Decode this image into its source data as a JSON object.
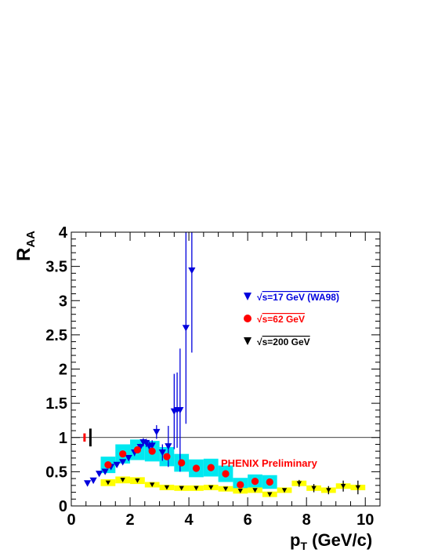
{
  "chart_data": {
    "type": "scatter",
    "xlabel": {
      "main": "p",
      "sub": "T",
      "rest": " (GeV/c)"
    },
    "ylabel": {
      "main": "R",
      "sub": "AA"
    },
    "xlim": [
      0,
      10.5
    ],
    "ylim": [
      0,
      4
    ],
    "x_ticks": [
      "0",
      "2",
      "4",
      "6",
      "8",
      "10"
    ],
    "y_ticks": [
      "0",
      "0.5",
      "1",
      "1.5",
      "2",
      "2.5",
      "3",
      "3.5",
      "4"
    ],
    "reference_line_y": 1,
    "annotation": {
      "text": "PHENIX Preliminary",
      "color": "#ff0000"
    },
    "series": [
      {
        "name": "√s=17 GeV (WA98)",
        "root": "√",
        "label_rest": "s=17 GeV (WA98)",
        "color": "#0000dd",
        "marker": "triangle-down",
        "points": [
          {
            "x": 0.55,
            "y": 0.33,
            "err": 0.02
          },
          {
            "x": 0.75,
            "y": 0.37,
            "err": 0.02
          },
          {
            "x": 0.95,
            "y": 0.47,
            "err": 0.02
          },
          {
            "x": 1.15,
            "y": 0.5,
            "err": 0.02
          },
          {
            "x": 1.35,
            "y": 0.57,
            "err": 0.03
          },
          {
            "x": 1.55,
            "y": 0.6,
            "err": 0.03
          },
          {
            "x": 1.75,
            "y": 0.64,
            "err": 0.03
          },
          {
            "x": 1.95,
            "y": 0.7,
            "err": 0.04
          },
          {
            "x": 2.15,
            "y": 0.78,
            "err": 0.05
          },
          {
            "x": 2.35,
            "y": 0.86,
            "err": 0.05
          },
          {
            "x": 2.45,
            "y": 0.93,
            "err": 0.06
          },
          {
            "x": 2.55,
            "y": 0.92,
            "err": 0.06
          },
          {
            "x": 2.65,
            "y": 0.87,
            "err": 0.07
          },
          {
            "x": 2.75,
            "y": 0.88,
            "err": 0.08
          },
          {
            "x": 2.9,
            "y": 1.08,
            "err": 0.1
          },
          {
            "x": 3.1,
            "y": 0.78,
            "err": 0.12
          },
          {
            "x": 3.3,
            "y": 0.87,
            "err": 0.3
          },
          {
            "x": 3.5,
            "y": 1.38,
            "err": 0.55
          },
          {
            "x": 3.6,
            "y": 1.4,
            "err": 0.55
          },
          {
            "x": 3.7,
            "y": 1.4,
            "err": 0.9
          },
          {
            "x": 3.9,
            "y": 2.6,
            "err": 1.4
          },
          {
            "x": 4.1,
            "y": 3.44,
            "err": 1.2
          }
        ]
      },
      {
        "name": "√s=62 GeV",
        "root": "√",
        "label_rest": "s=62 GeV",
        "color": "#ff0000",
        "marker": "circle",
        "sys_color": "#00e8f0",
        "points": [
          {
            "x": 1.25,
            "y": 0.6,
            "sys": 0.12
          },
          {
            "x": 1.75,
            "y": 0.76,
            "sys": 0.14
          },
          {
            "x": 2.25,
            "y": 0.82,
            "sys": 0.15
          },
          {
            "x": 2.75,
            "y": 0.8,
            "sys": 0.15
          },
          {
            "x": 3.25,
            "y": 0.72,
            "sys": 0.14
          },
          {
            "x": 3.75,
            "y": 0.63,
            "sys": 0.13
          },
          {
            "x": 4.25,
            "y": 0.55,
            "sys": 0.13
          },
          {
            "x": 4.75,
            "y": 0.56,
            "sys": 0.13
          },
          {
            "x": 5.25,
            "y": 0.47,
            "sys": 0.12
          },
          {
            "x": 5.75,
            "y": 0.31,
            "sys": 0.1
          },
          {
            "x": 6.25,
            "y": 0.36,
            "sys": 0.1
          },
          {
            "x": 6.75,
            "y": 0.35,
            "sys": 0.1
          }
        ]
      },
      {
        "name": "√s=200 GeV",
        "root": "√",
        "label_rest": "s=200 GeV",
        "color": "#000000",
        "marker": "triangle-down",
        "sys_color": "#ffff00",
        "points": [
          {
            "x": 1.25,
            "y": 0.34,
            "sys": 0.05,
            "err": 0.01
          },
          {
            "x": 1.75,
            "y": 0.38,
            "sys": 0.05,
            "err": 0.01
          },
          {
            "x": 2.25,
            "y": 0.37,
            "sys": 0.05,
            "err": 0.01
          },
          {
            "x": 2.75,
            "y": 0.31,
            "sys": 0.04,
            "err": 0.01
          },
          {
            "x": 3.25,
            "y": 0.27,
            "sys": 0.04,
            "err": 0.01
          },
          {
            "x": 3.75,
            "y": 0.26,
            "sys": 0.04,
            "err": 0.01
          },
          {
            "x": 4.25,
            "y": 0.26,
            "sys": 0.04,
            "err": 0.01
          },
          {
            "x": 4.75,
            "y": 0.27,
            "sys": 0.04,
            "err": 0.01
          },
          {
            "x": 5.25,
            "y": 0.25,
            "sys": 0.04,
            "err": 0.01
          },
          {
            "x": 5.75,
            "y": 0.22,
            "sys": 0.04,
            "err": 0.01
          },
          {
            "x": 6.25,
            "y": 0.23,
            "sys": 0.04,
            "err": 0.02
          },
          {
            "x": 6.75,
            "y": 0.17,
            "sys": 0.04,
            "err": 0.03
          },
          {
            "x": 7.25,
            "y": 0.23,
            "sys": 0.04,
            "err": 0.03
          },
          {
            "x": 7.75,
            "y": 0.33,
            "sys": 0.04,
            "err": 0.05
          },
          {
            "x": 8.25,
            "y": 0.26,
            "sys": 0.04,
            "err": 0.06
          },
          {
            "x": 8.75,
            "y": 0.23,
            "sys": 0.04,
            "err": 0.06
          },
          {
            "x": 9.25,
            "y": 0.29,
            "sys": 0.04,
            "err": 0.08
          },
          {
            "x": 9.75,
            "y": 0.27,
            "sys": 0.04,
            "err": 0.1
          }
        ]
      }
    ],
    "normalization_bars": [
      {
        "x": 0.45,
        "half_height": 0.06,
        "color": "#ff0000"
      },
      {
        "x": 0.65,
        "half_height": 0.13,
        "color": "#000000"
      }
    ]
  }
}
